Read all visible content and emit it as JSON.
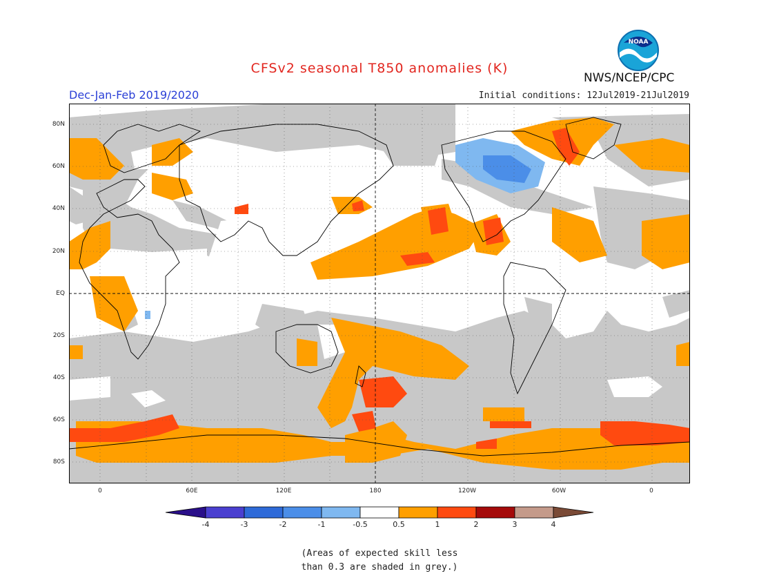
{
  "header": {
    "title": "CFSv2 seasonal T850 anomalies (K)",
    "season": "Dec-Jan-Feb 2019/2020",
    "initial_conditions": "Initial conditions: 12Jul2019-21Jul2019",
    "agency": "NWS/NCEP/CPC",
    "logo_text": "NOAA"
  },
  "map": {
    "projection": "equirectangular",
    "lon_range": [
      -20,
      380
    ],
    "lat_range": [
      -90,
      90
    ],
    "lat_labels": [
      "80N",
      "60N",
      "40N",
      "20N",
      "EQ",
      "20S",
      "40S",
      "60S",
      "80S"
    ],
    "lon_labels": [
      "0",
      "60E",
      "120E",
      "180",
      "120W",
      "60W",
      "0"
    ]
  },
  "colorbar": {
    "labels": [
      "-4",
      "-3",
      "-2",
      "-1",
      "-0.5",
      "0.5",
      "1",
      "2",
      "3",
      "4"
    ],
    "colors": {
      "lt-4": "#2a0f8a",
      "-4_-3": "#4a3fd0",
      "-3_-2": "#2e6ad8",
      "-2_-1": "#4b8ee8",
      "-1_-0.5": "#7fb8f0",
      "-0.5_0.5": "#ffffff",
      "0.5_1": "#ff9f00",
      "1_2": "#ff4a10",
      "2_3": "#a50a0a",
      "3_4": "#c49a8a",
      "gt4": "#7a4a36"
    },
    "grey_mask": "#c8c8c8"
  },
  "note": {
    "line1": "(Areas of expected skill less",
    "line2": "than 0.3 are shaded in grey.)"
  }
}
